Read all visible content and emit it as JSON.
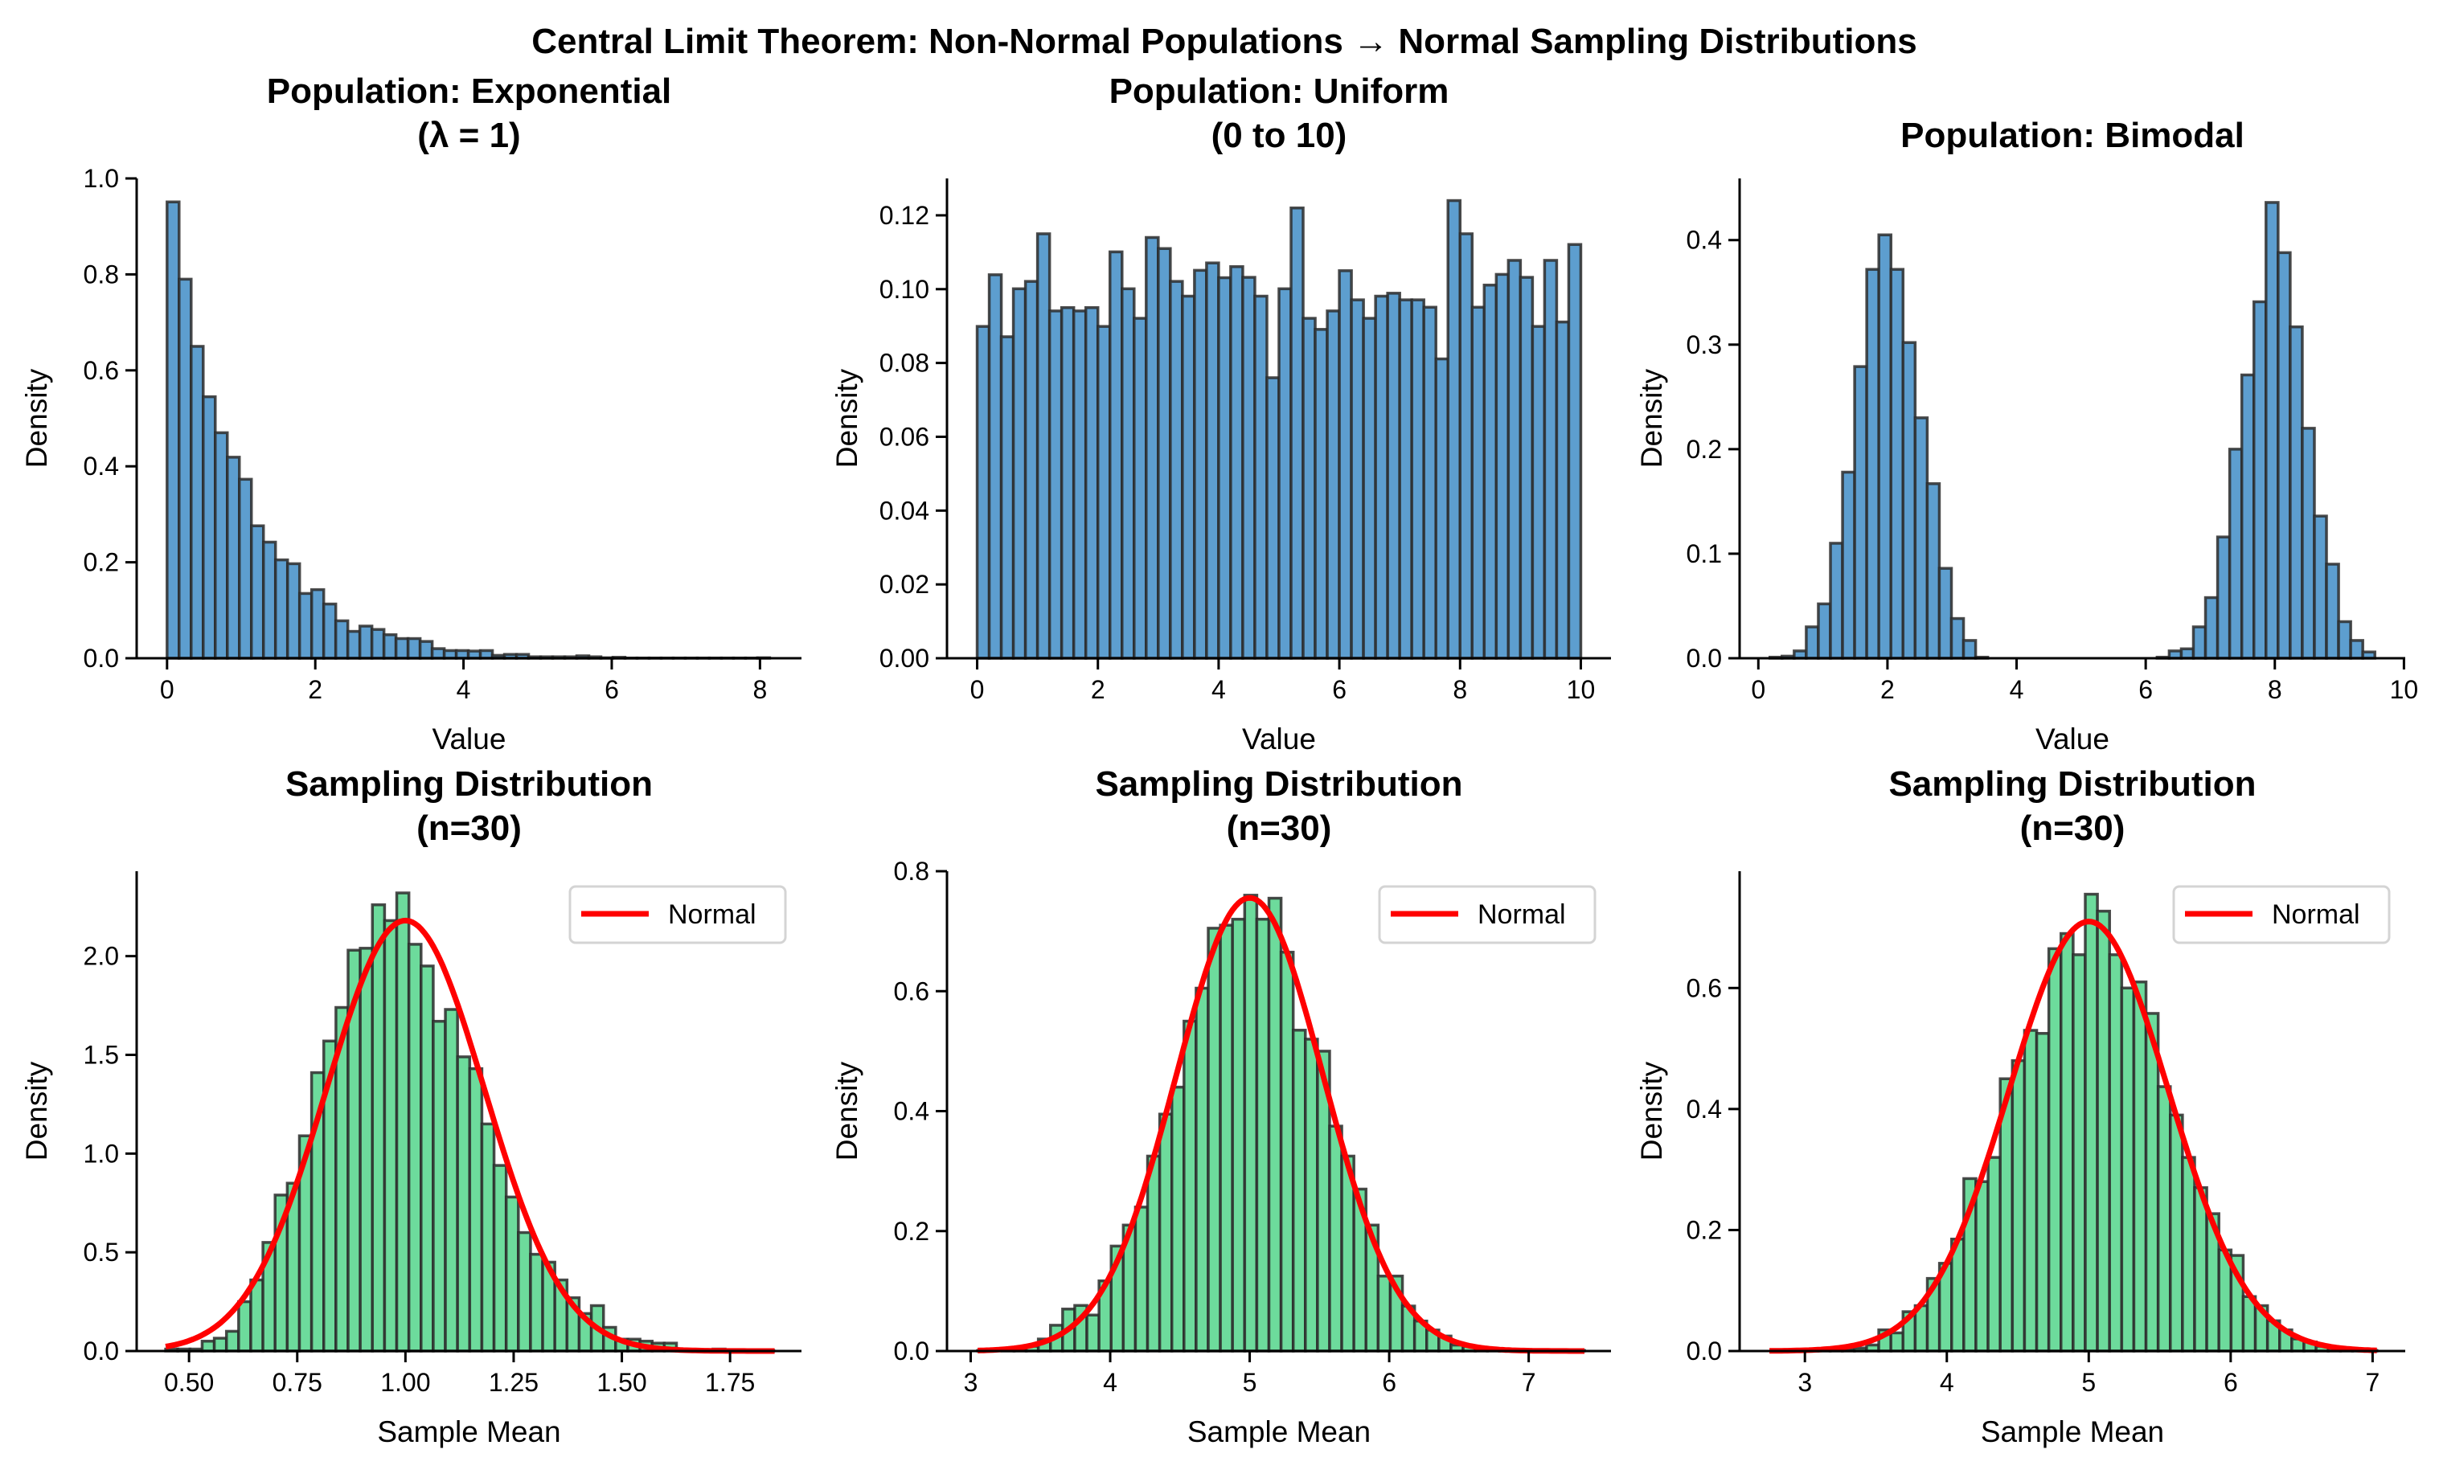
{
  "suptitle": "Central Limit Theorem: Non-Normal Populations → Normal Sampling Distributions",
  "colors": {
    "population_bar": "#5d9ecf",
    "sampling_bar": "#6ddb9c",
    "bar_edge": "#2b2b2b",
    "normal_curve": "#ff0000"
  },
  "chart_data": [
    {
      "type": "bar",
      "title": [
        "Population: Exponential",
        "(λ = 1)"
      ],
      "xlabel": "Value",
      "ylabel": "Density",
      "xlim": [
        -0.41,
        8.56
      ],
      "ylim": [
        0,
        1.0
      ],
      "xticks": [
        0,
        2,
        4,
        6,
        8
      ],
      "xticklabels": [
        "0",
        "2",
        "4",
        "6",
        "8"
      ],
      "yticks": [
        0,
        0.2,
        0.4,
        0.6,
        0.8,
        1.0
      ],
      "yticklabels": [
        "0.0",
        "0.2",
        "0.4",
        "0.6",
        "0.8",
        "1.0"
      ],
      "bin_start": 0,
      "bin_width": 0.1626,
      "values": [
        0.951,
        0.79,
        0.65,
        0.545,
        0.47,
        0.419,
        0.373,
        0.276,
        0.242,
        0.205,
        0.197,
        0.135,
        0.143,
        0.113,
        0.078,
        0.056,
        0.067,
        0.06,
        0.049,
        0.041,
        0.041,
        0.035,
        0.02,
        0.016,
        0.016,
        0.015,
        0.016,
        0.006,
        0.008,
        0.008,
        0.003,
        0.003,
        0.003,
        0.003,
        0.005,
        0.003,
        0.001,
        0.002,
        0.0005,
        0.0005,
        0.0005,
        0.0005,
        0.0005,
        0.0005,
        0.0005,
        0.0005,
        0.0005,
        0.0005,
        0.0005,
        0.001
      ],
      "grid": false
    },
    {
      "type": "bar",
      "title": [
        "Population: Uniform",
        "(0 to 10)"
      ],
      "xlabel": "Value",
      "ylabel": "Density",
      "xlim": [
        -0.5,
        10.5
      ],
      "ylim": [
        0,
        0.13
      ],
      "xticks": [
        0,
        2,
        4,
        6,
        8,
        10
      ],
      "xticklabels": [
        "0",
        "2",
        "4",
        "6",
        "8",
        "10"
      ],
      "yticks": [
        0,
        0.02,
        0.04,
        0.06,
        0.08,
        0.1,
        0.12
      ],
      "yticklabels": [
        "0.00",
        "0.02",
        "0.04",
        "0.06",
        "0.08",
        "0.10",
        "0.12"
      ],
      "bin_start": 0,
      "bin_width": 0.2,
      "values": [
        0.0899,
        0.1039,
        0.0871,
        0.1001,
        0.1021,
        0.115,
        0.0941,
        0.095,
        0.0941,
        0.095,
        0.0899,
        0.1101,
        0.1001,
        0.0921,
        0.114,
        0.111,
        0.1021,
        0.0981,
        0.1051,
        0.1071,
        0.1031,
        0.1061,
        0.1032,
        0.0981,
        0.076,
        0.1001,
        0.122,
        0.0921,
        0.0891,
        0.0941,
        0.105,
        0.0971,
        0.0921,
        0.0981,
        0.0989,
        0.0971,
        0.0971,
        0.0951,
        0.0811,
        0.124,
        0.115,
        0.0951,
        0.1011,
        0.104,
        0.1078,
        0.1032,
        0.0899,
        0.1078,
        0.0911,
        0.1121
      ],
      "grid": false
    },
    {
      "type": "bar",
      "title": [
        "Population: Bimodal"
      ],
      "xlabel": "Value",
      "ylabel": "Density",
      "xlim": [
        -0.29,
        10.02
      ],
      "ylim": [
        0,
        0.459
      ],
      "xticks": [
        0,
        2,
        4,
        6,
        8,
        10
      ],
      "xticklabels": [
        "0",
        "2",
        "4",
        "6",
        "8",
        "10"
      ],
      "yticks": [
        0,
        0.1,
        0.2,
        0.3,
        0.4
      ],
      "yticklabels": [
        "0.0",
        "0.1",
        "0.2",
        "0.3",
        "0.4"
      ],
      "bin_start": 0.18,
      "bin_width": 0.1874,
      "values": [
        0.001,
        0.002,
        0.007,
        0.03,
        0.052,
        0.11,
        0.178,
        0.279,
        0.372,
        0.405,
        0.372,
        0.302,
        0.23,
        0.167,
        0.086,
        0.038,
        0.017,
        0.001,
        0,
        0,
        0,
        0,
        0,
        0,
        0,
        0,
        0,
        0,
        0,
        0,
        0,
        0,
        0.001,
        0.007,
        0.009,
        0.03,
        0.058,
        0.116,
        0.2,
        0.271,
        0.341,
        0.436,
        0.388,
        0.317,
        0.22,
        0.136,
        0.09,
        0.035,
        0.017,
        0.006
      ],
      "grid": false
    },
    {
      "type": "bar",
      "title": [
        "Sampling Distribution",
        "(n=30)"
      ],
      "xlabel": "Sample Mean",
      "ylabel": "Density",
      "xlim": [
        0.379,
        1.915
      ],
      "ylim": [
        0,
        2.43
      ],
      "xticks": [
        0.5,
        0.75,
        1.0,
        1.25,
        1.5,
        1.75
      ],
      "xticklabels": [
        "0.50",
        "0.75",
        "1.00",
        "1.25",
        "1.50",
        "1.75"
      ],
      "yticks": [
        0,
        0.5,
        1.0,
        1.5,
        2.0
      ],
      "yticklabels": [
        "0.0",
        "0.5",
        "1.0",
        "1.5",
        "2.0"
      ],
      "bin_start": 0.446,
      "bin_width": 0.0281,
      "values": [
        0.01,
        0.01,
        0.01,
        0.05,
        0.065,
        0.1,
        0.25,
        0.36,
        0.55,
        0.79,
        0.85,
        1.09,
        1.41,
        1.57,
        1.74,
        2.03,
        2.04,
        2.26,
        2.18,
        2.32,
        2.06,
        1.95,
        1.67,
        1.73,
        1.49,
        1.43,
        1.15,
        0.94,
        0.78,
        0.6,
        0.49,
        0.45,
        0.36,
        0.27,
        0.19,
        0.23,
        0.12,
        0.06,
        0.06,
        0.05,
        0.04,
        0.04,
        0.005,
        0.005,
        0.005,
        0.01,
        0.005,
        0.002,
        0.002,
        0.002
      ],
      "normal": {
        "mean": 1.0,
        "std": 0.183,
        "x_range": [
          0.446,
          1.853
        ]
      },
      "legend": {
        "label": "Normal",
        "position": "upper right"
      },
      "grid": false
    },
    {
      "type": "bar",
      "title": [
        "Sampling Distribution",
        "(n=30)"
      ],
      "xlabel": "Sample Mean",
      "ylabel": "Density",
      "xlim": [
        2.83,
        7.59
      ],
      "ylim": [
        0,
        0.8
      ],
      "xticks": [
        3,
        4,
        5,
        6,
        7
      ],
      "xticklabels": [
        "3",
        "4",
        "5",
        "6",
        "7"
      ],
      "yticks": [
        0,
        0.2,
        0.4,
        0.6,
        0.8
      ],
      "yticklabels": [
        "0.0",
        "0.2",
        "0.4",
        "0.6",
        "0.8"
      ],
      "bin_start": 3.05,
      "bin_width": 0.087,
      "values": [
        0.001,
        0,
        0.002,
        0.004,
        0.008,
        0.02,
        0.043,
        0.07,
        0.076,
        0.06,
        0.117,
        0.175,
        0.21,
        0.24,
        0.325,
        0.395,
        0.44,
        0.55,
        0.605,
        0.705,
        0.71,
        0.72,
        0.76,
        0.72,
        0.755,
        0.665,
        0.535,
        0.52,
        0.5,
        0.375,
        0.325,
        0.27,
        0.21,
        0.125,
        0.125,
        0.075,
        0.05,
        0.035,
        0.025,
        0.01,
        0.008,
        0.005,
        0.002,
        0.001,
        0,
        0,
        0,
        0,
        0,
        0.001
      ],
      "normal": {
        "mean": 5.0,
        "std": 0.528,
        "x_range": [
          3.05,
          7.4
        ]
      },
      "legend": {
        "label": "Normal",
        "position": "upper right"
      },
      "grid": false
    },
    {
      "type": "bar",
      "title": [
        "Sampling Distribution",
        "(n=30)"
      ],
      "xlabel": "Sample Mean",
      "ylabel": "Density",
      "xlim": [
        2.54,
        7.23
      ],
      "ylim": [
        0,
        0.793
      ],
      "xticks": [
        3,
        4,
        5,
        6,
        7
      ],
      "xticklabels": [
        "3",
        "4",
        "5",
        "6",
        "7"
      ],
      "yticks": [
        0,
        0.2,
        0.4,
        0.6
      ],
      "yticklabels": [
        "0.0",
        "0.2",
        "0.4",
        "0.6"
      ],
      "bin_start": 2.75,
      "bin_width": 0.0856,
      "values": [
        0,
        0,
        0.001,
        0.001,
        0.002,
        0.003,
        0.004,
        0.005,
        0.01,
        0.035,
        0.03,
        0.065,
        0.075,
        0.12,
        0.145,
        0.185,
        0.285,
        0.28,
        0.32,
        0.45,
        0.48,
        0.53,
        0.525,
        0.665,
        0.69,
        0.655,
        0.755,
        0.727,
        0.655,
        0.6,
        0.61,
        0.558,
        0.437,
        0.39,
        0.32,
        0.27,
        0.227,
        0.167,
        0.158,
        0.09,
        0.075,
        0.05,
        0.035,
        0.02,
        0.015,
        0.008,
        0.005,
        0.002,
        0.001,
        0.001
      ],
      "normal": {
        "mean": 5.0,
        "std": 0.562,
        "x_range": [
          2.75,
          7.03
        ]
      },
      "legend": {
        "label": "Normal",
        "position": "upper right"
      },
      "grid": false
    }
  ]
}
